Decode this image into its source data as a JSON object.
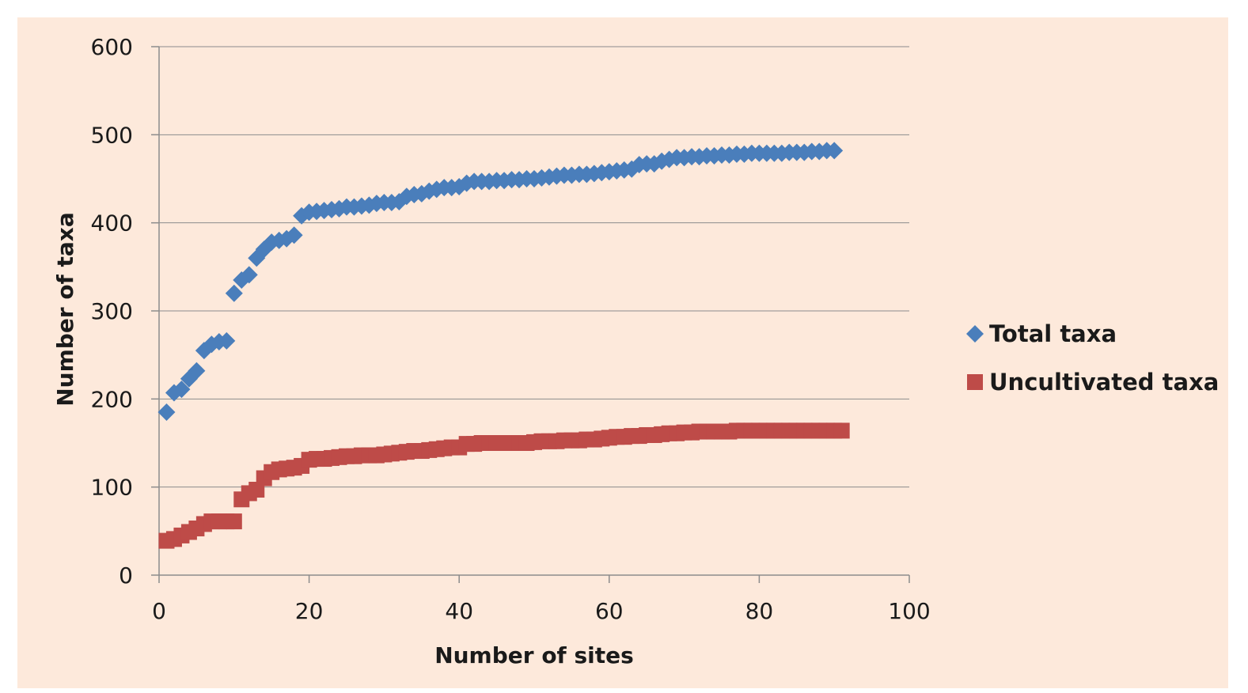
{
  "chart_data": {
    "type": "scatter",
    "xlabel": "Number of sites",
    "ylabel": "Number of taxa",
    "xlim": [
      0,
      100
    ],
    "ylim": [
      0,
      600
    ],
    "x_ticks": [
      "0",
      "20",
      "40",
      "60",
      "80",
      "100"
    ],
    "y_ticks": [
      "0",
      "100",
      "200",
      "300",
      "400",
      "500",
      "600"
    ],
    "grid": "horizontal",
    "legend_position": "right",
    "series": [
      {
        "name": "Total taxa",
        "marker": "diamond",
        "color": "#4a7ebb",
        "x": [
          1,
          2,
          3,
          4,
          5,
          6,
          7,
          8,
          9,
          10,
          11,
          12,
          13,
          14,
          15,
          16,
          17,
          18,
          19,
          20,
          21,
          22,
          23,
          24,
          25,
          26,
          27,
          28,
          29,
          30,
          31,
          32,
          33,
          34,
          35,
          36,
          37,
          38,
          39,
          40,
          41,
          42,
          43,
          44,
          45,
          46,
          47,
          48,
          49,
          50,
          51,
          52,
          53,
          54,
          55,
          56,
          57,
          58,
          59,
          60,
          61,
          62,
          63,
          64,
          65,
          66,
          67,
          68,
          69,
          70,
          71,
          72,
          73,
          74,
          75,
          76,
          77,
          78,
          79,
          80,
          81,
          82,
          83,
          84,
          85,
          86,
          87,
          88,
          89,
          90
        ],
        "y": [
          185,
          207,
          211,
          223,
          232,
          255,
          262,
          265,
          266,
          320,
          335,
          341,
          360,
          370,
          378,
          380,
          382,
          386,
          408,
          412,
          413,
          414,
          415,
          416,
          418,
          418,
          419,
          420,
          422,
          423,
          423,
          424,
          430,
          432,
          433,
          436,
          438,
          440,
          440,
          441,
          445,
          447,
          447,
          447,
          448,
          448,
          449,
          449,
          450,
          450,
          451,
          452,
          453,
          454,
          454,
          455,
          455,
          456,
          457,
          458,
          459,
          460,
          461,
          466,
          467,
          467,
          470,
          472,
          474,
          474,
          475,
          475,
          476,
          476,
          477,
          477,
          478,
          478,
          479,
          479,
          479,
          479,
          479,
          480,
          480,
          480,
          481,
          481,
          482,
          482
        ]
      },
      {
        "name": "Uncultivated taxa",
        "marker": "square",
        "color": "#be4b48",
        "x": [
          1,
          2,
          3,
          4,
          5,
          6,
          7,
          8,
          9,
          10,
          11,
          12,
          13,
          14,
          15,
          16,
          17,
          18,
          19,
          20,
          21,
          22,
          23,
          24,
          25,
          26,
          27,
          28,
          29,
          30,
          31,
          32,
          33,
          34,
          35,
          36,
          37,
          38,
          39,
          40,
          41,
          42,
          43,
          44,
          45,
          46,
          47,
          48,
          49,
          50,
          51,
          52,
          53,
          54,
          55,
          56,
          57,
          58,
          59,
          60,
          61,
          62,
          63,
          64,
          65,
          66,
          67,
          68,
          69,
          70,
          71,
          72,
          73,
          74,
          75,
          76,
          77,
          78,
          79,
          80,
          81,
          82,
          83,
          84,
          85,
          86,
          87,
          88,
          89,
          90,
          91
        ],
        "y": [
          39,
          41,
          45,
          49,
          53,
          58,
          61,
          61,
          61,
          61,
          86,
          93,
          97,
          110,
          117,
          120,
          121,
          122,
          124,
          131,
          132,
          132,
          133,
          134,
          135,
          135,
          136,
          136,
          136,
          137,
          138,
          139,
          140,
          141,
          141,
          142,
          143,
          144,
          145,
          145,
          149,
          149,
          150,
          150,
          150,
          150,
          150,
          150,
          150,
          151,
          152,
          152,
          152,
          153,
          153,
          153,
          154,
          154,
          155,
          156,
          157,
          157,
          158,
          158,
          159,
          159,
          160,
          161,
          161,
          162,
          162,
          163,
          163,
          163,
          163,
          163,
          164,
          164,
          164,
          164,
          164,
          164,
          164,
          164,
          164,
          164,
          164,
          164,
          164,
          164,
          164
        ]
      }
    ]
  }
}
